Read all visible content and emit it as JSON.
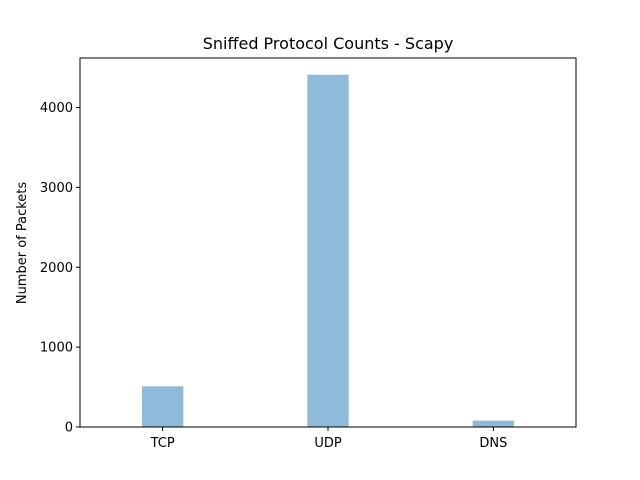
{
  "chart_data": {
    "type": "bar",
    "title": "Sniffed Protocol Counts - Scapy",
    "xlabel": "",
    "ylabel": "Number of Packets",
    "categories": [
      "TCP",
      "UDP",
      "DNS"
    ],
    "values": [
      510,
      4410,
      80
    ],
    "ylim": [
      0,
      4620
    ],
    "yticks": [
      0,
      1000,
      2000,
      3000,
      4000
    ],
    "ytick_labels": [
      "0",
      "1000",
      "2000",
      "3000",
      "4000"
    ],
    "bar_color": "#8fbad9",
    "grid": false,
    "legend": false
  }
}
